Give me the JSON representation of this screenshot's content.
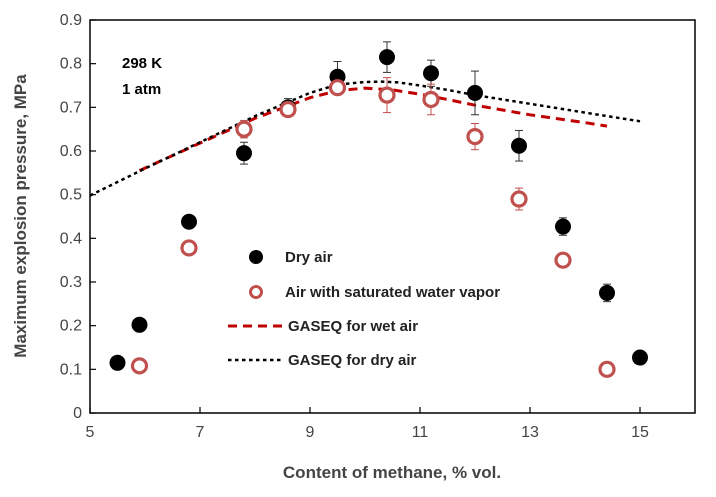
{
  "chart_data": {
    "type": "scatter",
    "xlabel": "Content of methane, % vol.",
    "ylabel": "Maximum explosion pressure, MPa",
    "xlim": [
      5,
      16
    ],
    "ylim": [
      0,
      0.9
    ],
    "x_ticks": [
      5,
      7,
      9,
      11,
      13,
      15
    ],
    "y_ticks": [
      0,
      0.1,
      0.2,
      0.3,
      0.4,
      0.5,
      0.6,
      0.7,
      0.8,
      0.9
    ],
    "grid": false,
    "legend": "center",
    "annotations": [
      "298 K",
      "1 atm"
    ],
    "colors": {
      "dry": "#000000",
      "wet": "#c0504d",
      "gaseq_wet": "#c00000",
      "gaseq_dry": "#000000"
    },
    "series": [
      {
        "name": "Dry air",
        "kind": "points",
        "x": [
          5.5,
          5.9,
          6.8,
          7.8,
          8.6,
          9.5,
          10.4,
          11.2,
          12.0,
          12.8,
          13.6,
          14.4,
          15.0
        ],
        "y": [
          0.115,
          0.202,
          0.438,
          0.595,
          0.7,
          0.77,
          0.815,
          0.778,
          0.733,
          0.612,
          0.427,
          0.275,
          0.127
        ],
        "err": [
          0,
          0,
          0,
          0.025,
          0.02,
          0.035,
          0.035,
          0.03,
          0.05,
          0.035,
          0.02,
          0.02,
          0
        ]
      },
      {
        "name": "Air with saturated water vapor",
        "kind": "open-points",
        "x": [
          5.9,
          6.8,
          7.8,
          8.6,
          9.5,
          10.4,
          11.2,
          12.0,
          12.8,
          13.6,
          14.4
        ],
        "y": [
          0.108,
          0.378,
          0.65,
          0.695,
          0.745,
          0.728,
          0.718,
          0.633,
          0.49,
          0.35,
          0.1
        ],
        "err": [
          0,
          0,
          0.02,
          0,
          0.01,
          0.04,
          0.035,
          0.03,
          0.025,
          0,
          0
        ]
      },
      {
        "name": "GASEQ for wet air",
        "kind": "dashed-line",
        "x": [
          5.9,
          7.0,
          8.0,
          9.0,
          9.5,
          10.0,
          10.5,
          11.0,
          11.5,
          12.0,
          13.0,
          14.0,
          14.4
        ],
        "y": [
          0.555,
          0.618,
          0.675,
          0.722,
          0.738,
          0.744,
          0.74,
          0.73,
          0.718,
          0.705,
          0.683,
          0.665,
          0.657
        ]
      },
      {
        "name": "GASEQ for dry air",
        "kind": "dotted-line",
        "x": [
          5.0,
          6.0,
          7.0,
          8.0,
          9.0,
          9.5,
          10.0,
          10.3,
          10.6,
          11.0,
          11.5,
          12.0,
          13.0,
          14.0,
          15.0
        ],
        "y": [
          0.498,
          0.56,
          0.62,
          0.68,
          0.733,
          0.752,
          0.758,
          0.759,
          0.757,
          0.75,
          0.74,
          0.728,
          0.708,
          0.688,
          0.668
        ]
      }
    ]
  }
}
